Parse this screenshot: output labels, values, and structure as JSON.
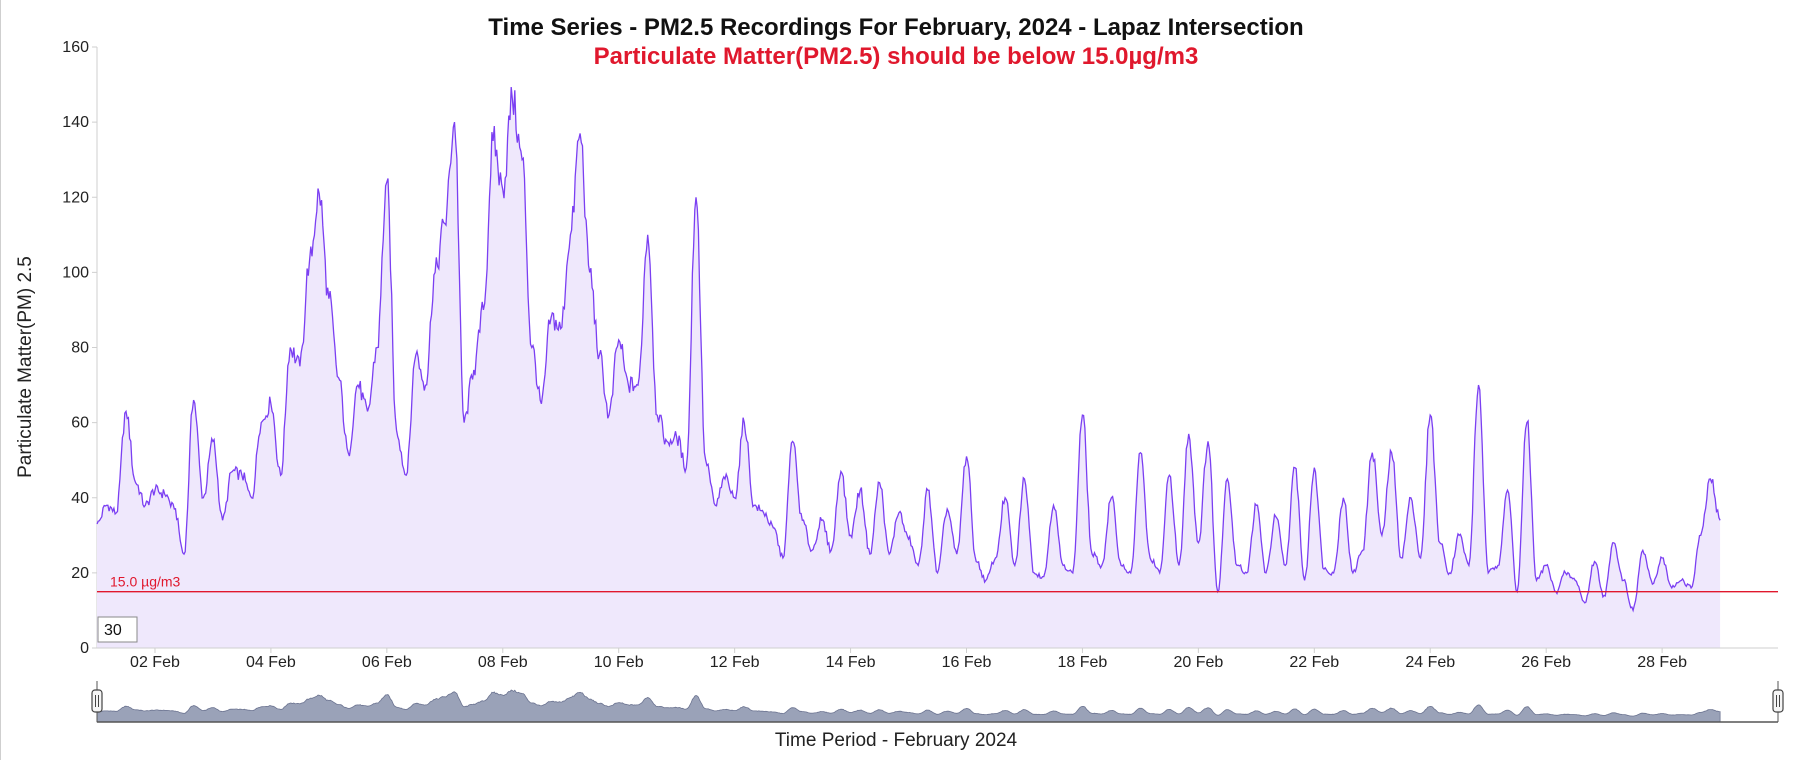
{
  "chart_data": {
    "type": "area",
    "title": "Time Series - PM2.5 Recordings For February, 2024 - Lapaz Intersection",
    "subtitle": "Particulate Matter(PM2.5) should be below 15.0µg/m3",
    "xlabel": "Time Period - February 2024",
    "ylabel": "Particulate Matter(PM) 2.5",
    "ylim": [
      0,
      160
    ],
    "y_ticks": [
      "0",
      "20",
      "40",
      "60",
      "80",
      "100",
      "120",
      "140",
      "160"
    ],
    "x_ticks": [
      "02 Feb",
      "04 Feb",
      "06 Feb",
      "08 Feb",
      "10 Feb",
      "12 Feb",
      "14 Feb",
      "16 Feb",
      "18 Feb",
      "20 Feb",
      "22 Feb",
      "24 Feb",
      "26 Feb",
      "28 Feb"
    ],
    "x_start": "2024-02-01 00:00",
    "x_end": "2024-02-29 23:59",
    "threshold": {
      "value": 15.0,
      "label": "15.0 µg/m3",
      "color": "#e0182d"
    },
    "smoothing_window": "30",
    "line_color": "#7b3ff2",
    "fill_color": "#efe8fc",
    "navigator_color": "#9aa2b8",
    "series": [
      {
        "points": [
          [
            "2024-02-01 00:00",
            33
          ],
          [
            "2024-02-01 04:00",
            38
          ],
          [
            "2024-02-01 08:00",
            36
          ],
          [
            "2024-02-01 12:00",
            63
          ],
          [
            "2024-02-01 16:00",
            44
          ],
          [
            "2024-02-01 20:00",
            38
          ],
          [
            "2024-02-02 00:00",
            42
          ],
          [
            "2024-02-02 04:00",
            41
          ],
          [
            "2024-02-02 08:00",
            37
          ],
          [
            "2024-02-02 12:00",
            25
          ],
          [
            "2024-02-02 16:00",
            66
          ],
          [
            "2024-02-02 20:00",
            40
          ],
          [
            "2024-02-03 00:00",
            55
          ],
          [
            "2024-02-03 04:00",
            34
          ],
          [
            "2024-02-03 08:00",
            47
          ],
          [
            "2024-02-03 12:00",
            46
          ],
          [
            "2024-02-03 16:00",
            40
          ],
          [
            "2024-02-03 20:00",
            60
          ],
          [
            "2024-02-04 00:00",
            65
          ],
          [
            "2024-02-04 04:00",
            46
          ],
          [
            "2024-02-04 08:00",
            80
          ],
          [
            "2024-02-04 12:00",
            75
          ],
          [
            "2024-02-04 16:00",
            103
          ],
          [
            "2024-02-04 20:00",
            121
          ],
          [
            "2024-02-05 00:00",
            93
          ],
          [
            "2024-02-05 04:00",
            72
          ],
          [
            "2024-02-05 08:00",
            52
          ],
          [
            "2024-02-05 12:00",
            70
          ],
          [
            "2024-02-05 16:00",
            63
          ],
          [
            "2024-02-05 20:00",
            80
          ],
          [
            "2024-02-06 00:00",
            124
          ],
          [
            "2024-02-06 04:00",
            58
          ],
          [
            "2024-02-06 08:00",
            46
          ],
          [
            "2024-02-06 12:00",
            78
          ],
          [
            "2024-02-06 16:00",
            70
          ],
          [
            "2024-02-06 20:00",
            100
          ],
          [
            "2024-02-07 00:00",
            113
          ],
          [
            "2024-02-07 04:00",
            140
          ],
          [
            "2024-02-07 08:00",
            60
          ],
          [
            "2024-02-07 12:00",
            74
          ],
          [
            "2024-02-07 16:00",
            90
          ],
          [
            "2024-02-07 20:00",
            135
          ],
          [
            "2024-02-08 00:00",
            122
          ],
          [
            "2024-02-08 04:00",
            146
          ],
          [
            "2024-02-08 08:00",
            130
          ],
          [
            "2024-02-08 12:00",
            80
          ],
          [
            "2024-02-08 16:00",
            65
          ],
          [
            "2024-02-08 20:00",
            88
          ],
          [
            "2024-02-09 00:00",
            85
          ],
          [
            "2024-02-09 04:00",
            110
          ],
          [
            "2024-02-09 08:00",
            137
          ],
          [
            "2024-02-09 12:00",
            100
          ],
          [
            "2024-02-09 16:00",
            78
          ],
          [
            "2024-02-09 20:00",
            62
          ],
          [
            "2024-02-10 00:00",
            82
          ],
          [
            "2024-02-10 04:00",
            70
          ],
          [
            "2024-02-10 08:00",
            70
          ],
          [
            "2024-02-10 12:00",
            110
          ],
          [
            "2024-02-10 16:00",
            62
          ],
          [
            "2024-02-10 20:00",
            55
          ],
          [
            "2024-02-11 00:00",
            56
          ],
          [
            "2024-02-11 04:00",
            48
          ],
          [
            "2024-02-11 08:00",
            120
          ],
          [
            "2024-02-11 12:00",
            50
          ],
          [
            "2024-02-11 16:00",
            38
          ],
          [
            "2024-02-11 20:00",
            45
          ],
          [
            "2024-02-12 00:00",
            40
          ],
          [
            "2024-02-12 04:00",
            60
          ],
          [
            "2024-02-12 08:00",
            38
          ],
          [
            "2024-02-12 12:00",
            36
          ],
          [
            "2024-02-12 16:00",
            32
          ],
          [
            "2024-02-12 20:00",
            24
          ],
          [
            "2024-02-13 00:00",
            55
          ],
          [
            "2024-02-13 04:00",
            34
          ],
          [
            "2024-02-13 08:00",
            26
          ],
          [
            "2024-02-13 12:00",
            34
          ],
          [
            "2024-02-13 16:00",
            26
          ],
          [
            "2024-02-13 20:00",
            47
          ],
          [
            "2024-02-14 00:00",
            30
          ],
          [
            "2024-02-14 04:00",
            42
          ],
          [
            "2024-02-14 08:00",
            25
          ],
          [
            "2024-02-14 12:00",
            44
          ],
          [
            "2024-02-14 16:00",
            25
          ],
          [
            "2024-02-14 20:00",
            36
          ],
          [
            "2024-02-15 00:00",
            29
          ],
          [
            "2024-02-15 04:00",
            22
          ],
          [
            "2024-02-15 08:00",
            42
          ],
          [
            "2024-02-15 12:00",
            20
          ],
          [
            "2024-02-15 16:00",
            37
          ],
          [
            "2024-02-15 20:00",
            25
          ],
          [
            "2024-02-16 00:00",
            51
          ],
          [
            "2024-02-16 04:00",
            23
          ],
          [
            "2024-02-16 08:00",
            18
          ],
          [
            "2024-02-16 12:00",
            24
          ],
          [
            "2024-02-16 16:00",
            40
          ],
          [
            "2024-02-16 20:00",
            22
          ],
          [
            "2024-02-17 00:00",
            45
          ],
          [
            "2024-02-17 04:00",
            20
          ],
          [
            "2024-02-17 08:00",
            19
          ],
          [
            "2024-02-17 12:00",
            38
          ],
          [
            "2024-02-17 16:00",
            22
          ],
          [
            "2024-02-17 20:00",
            20
          ],
          [
            "2024-02-18 00:00",
            62
          ],
          [
            "2024-02-18 04:00",
            25
          ],
          [
            "2024-02-18 08:00",
            22
          ],
          [
            "2024-02-18 12:00",
            40
          ],
          [
            "2024-02-18 16:00",
            22
          ],
          [
            "2024-02-18 20:00",
            20
          ],
          [
            "2024-02-19 00:00",
            52
          ],
          [
            "2024-02-19 04:00",
            24
          ],
          [
            "2024-02-19 08:00",
            20
          ],
          [
            "2024-02-19 12:00",
            46
          ],
          [
            "2024-02-19 16:00",
            22
          ],
          [
            "2024-02-19 20:00",
            57
          ],
          [
            "2024-02-20 00:00",
            28
          ],
          [
            "2024-02-20 04:00",
            55
          ],
          [
            "2024-02-20 08:00",
            15
          ],
          [
            "2024-02-20 12:00",
            45
          ],
          [
            "2024-02-20 16:00",
            22
          ],
          [
            "2024-02-20 20:00",
            20
          ],
          [
            "2024-02-21 00:00",
            38
          ],
          [
            "2024-02-21 04:00",
            20
          ],
          [
            "2024-02-21 08:00",
            35
          ],
          [
            "2024-02-21 12:00",
            22
          ],
          [
            "2024-02-21 16:00",
            48
          ],
          [
            "2024-02-21 20:00",
            18
          ],
          [
            "2024-02-22 00:00",
            48
          ],
          [
            "2024-02-22 04:00",
            21
          ],
          [
            "2024-02-22 08:00",
            20
          ],
          [
            "2024-02-22 12:00",
            40
          ],
          [
            "2024-02-22 16:00",
            20
          ],
          [
            "2024-02-22 20:00",
            26
          ],
          [
            "2024-02-23 00:00",
            52
          ],
          [
            "2024-02-23 04:00",
            30
          ],
          [
            "2024-02-23 08:00",
            52
          ],
          [
            "2024-02-23 12:00",
            24
          ],
          [
            "2024-02-23 16:00",
            40
          ],
          [
            "2024-02-23 20:00",
            24
          ],
          [
            "2024-02-24 00:00",
            62
          ],
          [
            "2024-02-24 04:00",
            28
          ],
          [
            "2024-02-24 08:00",
            20
          ],
          [
            "2024-02-24 12:00",
            30
          ],
          [
            "2024-02-24 16:00",
            22
          ],
          [
            "2024-02-24 20:00",
            70
          ],
          [
            "2024-02-25 00:00",
            20
          ],
          [
            "2024-02-25 04:00",
            22
          ],
          [
            "2024-02-25 08:00",
            42
          ],
          [
            "2024-02-25 12:00",
            15
          ],
          [
            "2024-02-25 16:00",
            60
          ],
          [
            "2024-02-25 20:00",
            18
          ],
          [
            "2024-02-26 00:00",
            22
          ],
          [
            "2024-02-26 04:00",
            15
          ],
          [
            "2024-02-26 08:00",
            20
          ],
          [
            "2024-02-26 12:00",
            18
          ],
          [
            "2024-02-26 16:00",
            12
          ],
          [
            "2024-02-26 20:00",
            23
          ],
          [
            "2024-02-27 00:00",
            14
          ],
          [
            "2024-02-27 04:00",
            28
          ],
          [
            "2024-02-27 08:00",
            18
          ],
          [
            "2024-02-27 12:00",
            10
          ],
          [
            "2024-02-27 16:00",
            26
          ],
          [
            "2024-02-27 20:00",
            17
          ],
          [
            "2024-02-28 00:00",
            24
          ],
          [
            "2024-02-28 04:00",
            16
          ],
          [
            "2024-02-28 08:00",
            18
          ],
          [
            "2024-02-28 12:00",
            16
          ],
          [
            "2024-02-28 16:00",
            30
          ],
          [
            "2024-02-28 20:00",
            45
          ],
          [
            "2024-02-29 00:00",
            34
          ]
        ]
      }
    ]
  }
}
